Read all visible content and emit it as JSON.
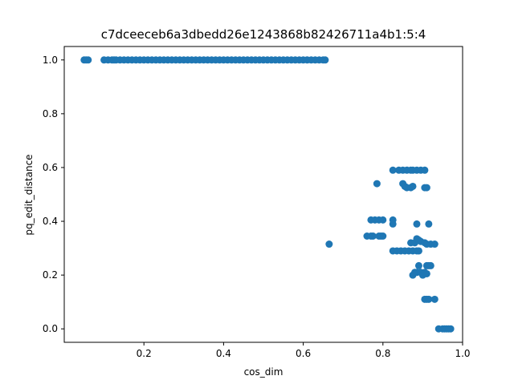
{
  "chart_data": {
    "type": "scatter",
    "title": "c7dceeceb6a3dbedd26e1243868b82426711a4b1:5:4",
    "xlabel": "cos_dim",
    "ylabel": "pq_edit_distance",
    "xlim": [
      0.0,
      1.0
    ],
    "ylim": [
      -0.05,
      1.05
    ],
    "xticks": [
      0.2,
      0.4,
      0.6,
      0.8,
      1.0
    ],
    "xtick_labels": [
      "0.2",
      "0.4",
      "0.6",
      "0.8",
      "1.0"
    ],
    "yticks": [
      0.0,
      0.2,
      0.4,
      0.6,
      0.8,
      1.0
    ],
    "ytick_labels": [
      "0.0",
      "0.2",
      "0.4",
      "0.6",
      "0.8",
      "1.0"
    ],
    "grid": false,
    "legend": "none",
    "marker_color": "#1f77b4",
    "series": [
      {
        "points": [
          [
            0.05,
            1.0
          ],
          [
            0.055,
            1.0
          ],
          [
            0.06,
            1.0
          ],
          [
            0.1,
            1.0
          ],
          [
            0.11,
            1.0
          ],
          [
            0.12,
            1.0
          ],
          [
            0.125,
            1.0
          ],
          [
            0.13,
            1.0
          ],
          [
            0.14,
            1.0
          ],
          [
            0.15,
            1.0
          ],
          [
            0.16,
            1.0
          ],
          [
            0.17,
            1.0
          ],
          [
            0.18,
            1.0
          ],
          [
            0.19,
            1.0
          ],
          [
            0.2,
            1.0
          ],
          [
            0.21,
            1.0
          ],
          [
            0.22,
            1.0
          ],
          [
            0.23,
            1.0
          ],
          [
            0.24,
            1.0
          ],
          [
            0.25,
            1.0
          ],
          [
            0.26,
            1.0
          ],
          [
            0.27,
            1.0
          ],
          [
            0.28,
            1.0
          ],
          [
            0.29,
            1.0
          ],
          [
            0.3,
            1.0
          ],
          [
            0.31,
            1.0
          ],
          [
            0.32,
            1.0
          ],
          [
            0.33,
            1.0
          ],
          [
            0.34,
            1.0
          ],
          [
            0.35,
            1.0
          ],
          [
            0.36,
            1.0
          ],
          [
            0.37,
            1.0
          ],
          [
            0.38,
            1.0
          ],
          [
            0.39,
            1.0
          ],
          [
            0.4,
            1.0
          ],
          [
            0.41,
            1.0
          ],
          [
            0.42,
            1.0
          ],
          [
            0.43,
            1.0
          ],
          [
            0.44,
            1.0
          ],
          [
            0.45,
            1.0
          ],
          [
            0.46,
            1.0
          ],
          [
            0.47,
            1.0
          ],
          [
            0.48,
            1.0
          ],
          [
            0.49,
            1.0
          ],
          [
            0.5,
            1.0
          ],
          [
            0.51,
            1.0
          ],
          [
            0.52,
            1.0
          ],
          [
            0.53,
            1.0
          ],
          [
            0.54,
            1.0
          ],
          [
            0.55,
            1.0
          ],
          [
            0.56,
            1.0
          ],
          [
            0.57,
            1.0
          ],
          [
            0.58,
            1.0
          ],
          [
            0.59,
            1.0
          ],
          [
            0.6,
            1.0
          ],
          [
            0.61,
            1.0
          ],
          [
            0.62,
            1.0
          ],
          [
            0.63,
            1.0
          ],
          [
            0.64,
            1.0
          ],
          [
            0.65,
            1.0
          ],
          [
            0.655,
            1.0
          ],
          [
            0.665,
            0.315
          ],
          [
            0.76,
            0.345
          ],
          [
            0.77,
            0.345
          ],
          [
            0.775,
            0.345
          ],
          [
            0.79,
            0.345
          ],
          [
            0.795,
            0.345
          ],
          [
            0.8,
            0.345
          ],
          [
            0.77,
            0.405
          ],
          [
            0.78,
            0.405
          ],
          [
            0.79,
            0.405
          ],
          [
            0.8,
            0.405
          ],
          [
            0.825,
            0.405
          ],
          [
            0.825,
            0.39
          ],
          [
            0.785,
            0.54
          ],
          [
            0.825,
            0.59
          ],
          [
            0.84,
            0.59
          ],
          [
            0.85,
            0.59
          ],
          [
            0.86,
            0.59
          ],
          [
            0.87,
            0.59
          ],
          [
            0.875,
            0.59
          ],
          [
            0.885,
            0.59
          ],
          [
            0.895,
            0.59
          ],
          [
            0.905,
            0.59
          ],
          [
            0.85,
            0.54
          ],
          [
            0.855,
            0.53
          ],
          [
            0.86,
            0.525
          ],
          [
            0.87,
            0.525
          ],
          [
            0.875,
            0.53
          ],
          [
            0.905,
            0.525
          ],
          [
            0.91,
            0.525
          ],
          [
            0.825,
            0.29
          ],
          [
            0.835,
            0.29
          ],
          [
            0.845,
            0.29
          ],
          [
            0.855,
            0.29
          ],
          [
            0.865,
            0.29
          ],
          [
            0.875,
            0.29
          ],
          [
            0.885,
            0.29
          ],
          [
            0.89,
            0.29
          ],
          [
            0.87,
            0.32
          ],
          [
            0.88,
            0.32
          ],
          [
            0.885,
            0.335
          ],
          [
            0.89,
            0.33
          ],
          [
            0.895,
            0.325
          ],
          [
            0.905,
            0.32
          ],
          [
            0.91,
            0.315
          ],
          [
            0.92,
            0.315
          ],
          [
            0.93,
            0.315
          ],
          [
            0.885,
            0.39
          ],
          [
            0.915,
            0.39
          ],
          [
            0.89,
            0.235
          ],
          [
            0.91,
            0.235
          ],
          [
            0.915,
            0.235
          ],
          [
            0.92,
            0.235
          ],
          [
            0.875,
            0.2
          ],
          [
            0.88,
            0.21
          ],
          [
            0.885,
            0.21
          ],
          [
            0.895,
            0.21
          ],
          [
            0.9,
            0.2
          ],
          [
            0.905,
            0.21
          ],
          [
            0.91,
            0.205
          ],
          [
            0.905,
            0.11
          ],
          [
            0.91,
            0.11
          ],
          [
            0.915,
            0.11
          ],
          [
            0.93,
            0.11
          ],
          [
            0.94,
            0.0
          ],
          [
            0.95,
            0.0
          ],
          [
            0.955,
            0.0
          ],
          [
            0.96,
            0.0
          ],
          [
            0.965,
            0.0
          ],
          [
            0.97,
            0.0
          ]
        ]
      }
    ]
  }
}
